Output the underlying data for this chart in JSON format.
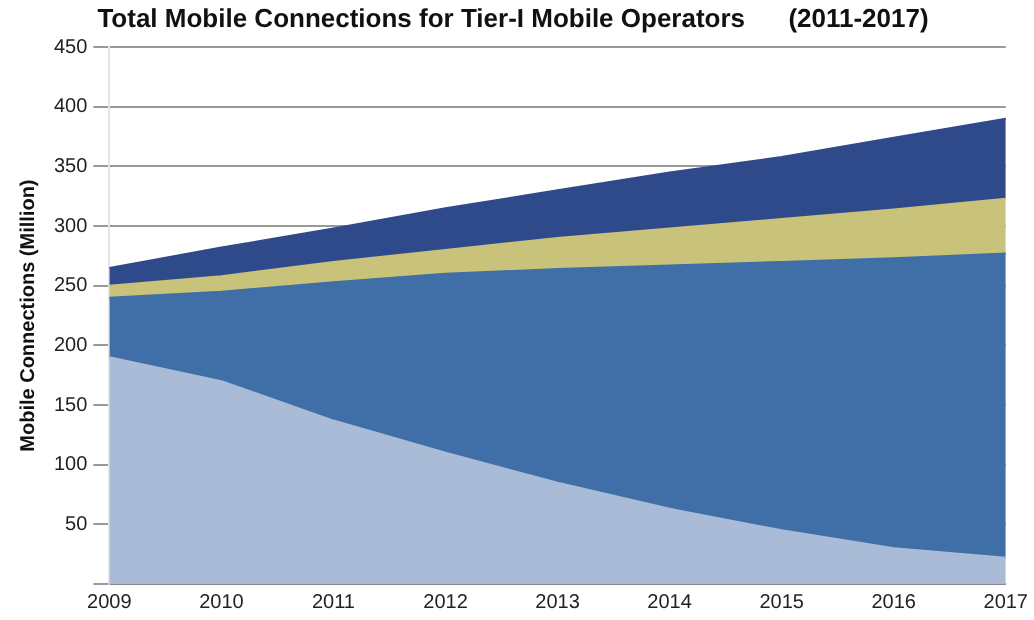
{
  "chart_data": {
    "type": "area",
    "stacked": true,
    "title": "Total Mobile Connections for Tier-I Mobile Operators      (2011-2017)",
    "ylabel": "Mobile Connections (Million)",
    "categories": [
      "2009",
      "2010",
      "2011",
      "2012",
      "2013",
      "2014",
      "2015",
      "2016",
      "2017"
    ],
    "series": [
      {
        "color": "#a9bbd6",
        "values": [
          190,
          170,
          137,
          110,
          85,
          63,
          45,
          30,
          22
        ]
      },
      {
        "color": "#3f6fa6",
        "values": [
          50,
          75,
          116,
          150,
          179,
          204,
          225,
          243,
          255
        ]
      },
      {
        "color": "#c9c27a",
        "values": [
          10,
          13,
          17,
          20,
          26,
          31,
          36,
          41,
          46
        ]
      },
      {
        "color": "#2f4a8a",
        "values": [
          15,
          24,
          28,
          35,
          40,
          47,
          52,
          60,
          67
        ]
      }
    ],
    "ylim": [
      0,
      450
    ],
    "yticks": [
      {
        "value": 0,
        "label": null
      },
      50,
      100,
      150,
      200,
      250,
      300,
      350,
      400,
      450
    ],
    "grid": "y",
    "legend": false,
    "marker": "none"
  }
}
